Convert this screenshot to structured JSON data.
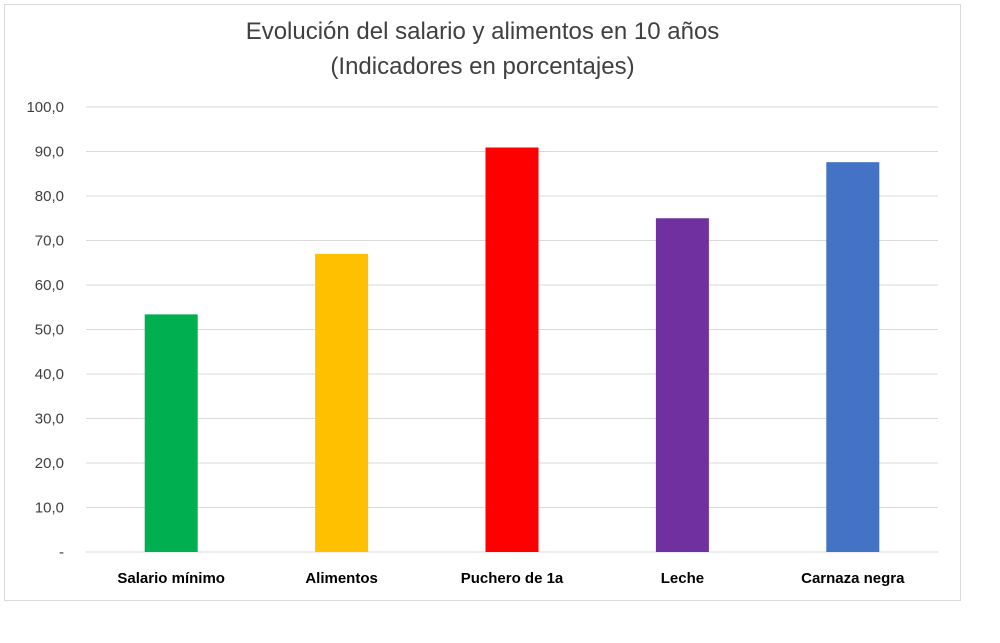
{
  "chart_data": {
    "type": "bar",
    "title": "Evolución del salario y alimentos en 10 años",
    "subtitle": "(Indicadores en porcentajes)",
    "categories": [
      "Salario mínimo",
      "Alimentos",
      "Puchero de 1a",
      "Leche",
      "Carnaza negra"
    ],
    "values": [
      53.4,
      67.0,
      90.9,
      75.0,
      87.6
    ],
    "colors": [
      "#00b050",
      "#ffc000",
      "#ff0000",
      "#7030a0",
      "#4472c4"
    ],
    "ylim": [
      0,
      100
    ],
    "ytick_values": [
      0,
      10,
      20,
      30,
      40,
      50,
      60,
      70,
      80,
      90,
      100
    ],
    "ytick_labels": [
      "-",
      "10,0",
      "20,0",
      "30,0",
      "40,0",
      "50,0",
      "60,0",
      "70,0",
      "80,0",
      "90,0",
      "100,0"
    ],
    "grid": true,
    "xlabel": "",
    "ylabel": ""
  }
}
